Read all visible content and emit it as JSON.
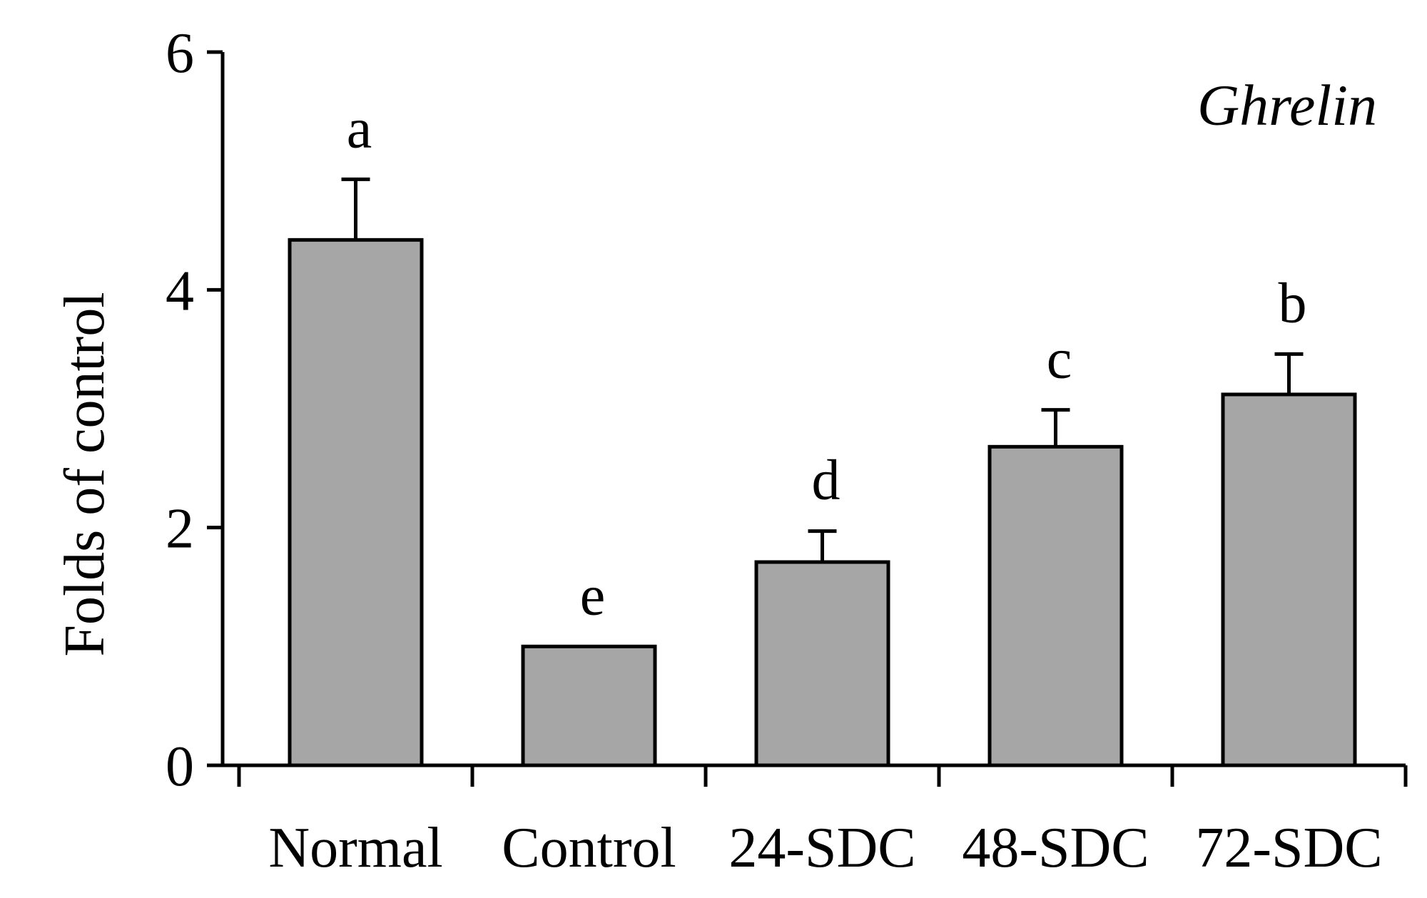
{
  "chart_data": {
    "type": "bar",
    "title": "Ghrelin",
    "xlabel": "",
    "ylabel": "Folds of control",
    "ylim": [
      0,
      6
    ],
    "yticks": [
      0,
      2,
      4,
      6
    ],
    "categories": [
      "Normal",
      "Control",
      "24-SDC",
      "48-SDC",
      "72-SDC"
    ],
    "values": [
      4.42,
      1.0,
      1.71,
      2.68,
      3.12
    ],
    "errors": [
      0.51,
      0.0,
      0.26,
      0.31,
      0.34
    ],
    "significance": [
      "a",
      "e",
      "d",
      "c",
      "b"
    ],
    "bar_color": "#a6a6a6",
    "grid": false
  }
}
